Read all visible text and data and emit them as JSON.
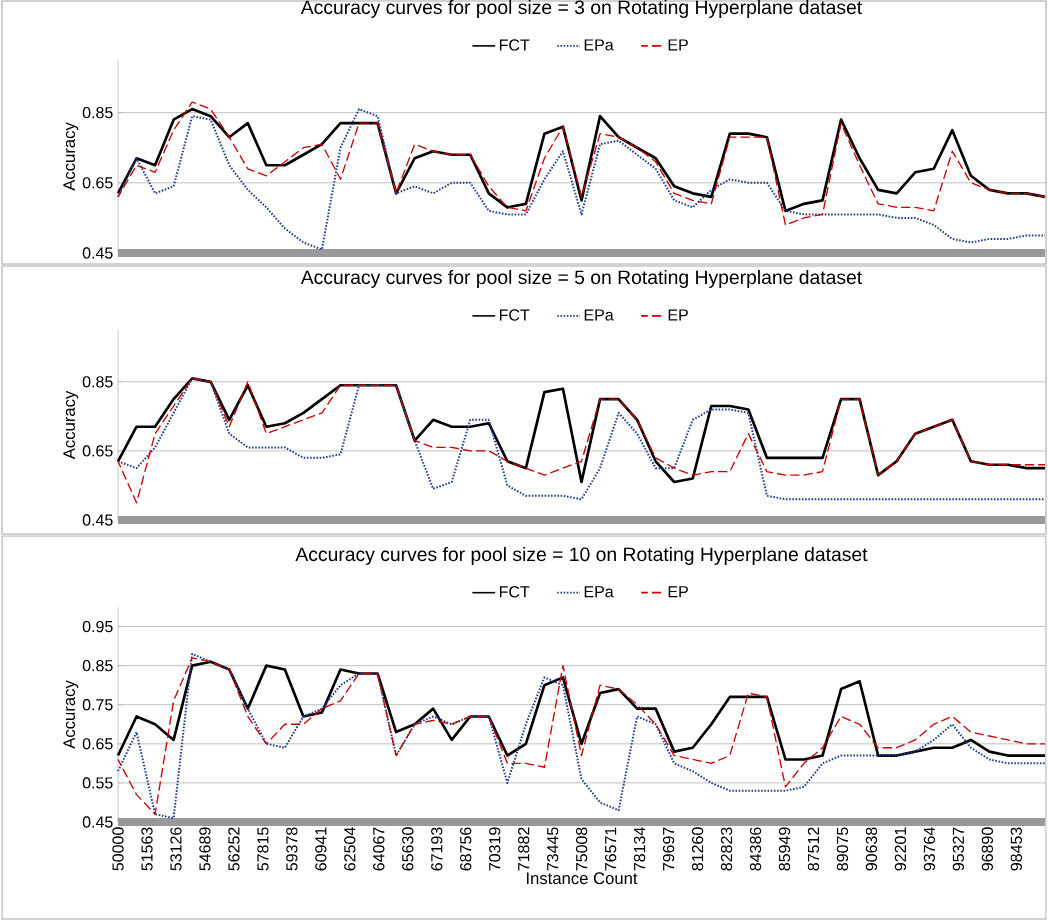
{
  "chart_data": [
    {
      "type": "line",
      "title": "Accuracy curves for pool size = 3 on Rotating Hyperplane dataset",
      "ylabel": "Accuracy",
      "legend": "top",
      "grid": "y",
      "tick_labels": "y",
      "x": [
        50000,
        51000,
        52000,
        53000,
        54000,
        55000,
        56000,
        57000,
        58000,
        59000,
        60000,
        61000,
        62000,
        63000,
        64000,
        65000,
        66000,
        67000,
        68000,
        69000,
        70000,
        71000,
        72000,
        73000,
        74000,
        75000,
        76000,
        77000,
        78000,
        79000,
        80000,
        81000,
        82000,
        83000,
        84000,
        85000,
        86000,
        87000,
        88000,
        89000,
        90000,
        91000,
        92000,
        93000,
        94000,
        95000,
        96000,
        97000,
        98000,
        99000,
        100000
      ],
      "xlim": [
        50000,
        100000
      ],
      "ylim": [
        0.45,
        1.0
      ],
      "yticks": [
        0.45,
        0.65,
        0.85
      ],
      "series": [
        {
          "name": "FCT",
          "color": "#000000",
          "line_style": "solid",
          "values": [
            0.62,
            0.72,
            0.7,
            0.83,
            0.86,
            0.84,
            0.78,
            0.82,
            0.7,
            0.7,
            0.73,
            0.76,
            0.82,
            0.82,
            0.82,
            0.62,
            0.72,
            0.74,
            0.73,
            0.73,
            0.62,
            0.58,
            0.59,
            0.79,
            0.81,
            0.6,
            0.84,
            0.78,
            0.75,
            0.72,
            0.64,
            0.62,
            0.61,
            0.79,
            0.79,
            0.78,
            0.57,
            0.59,
            0.6,
            0.83,
            0.72,
            0.63,
            0.62,
            0.68,
            0.69,
            0.8,
            0.67,
            0.63,
            0.62,
            0.62,
            0.61
          ]
        },
        {
          "name": "EPa",
          "color": "#1f3f8f",
          "line_style": "dotted",
          "values": [
            0.61,
            0.72,
            0.62,
            0.64,
            0.84,
            0.83,
            0.7,
            0.63,
            0.58,
            0.52,
            0.48,
            0.46,
            0.75,
            0.86,
            0.84,
            0.62,
            0.64,
            0.62,
            0.65,
            0.65,
            0.57,
            0.56,
            0.56,
            0.66,
            0.74,
            0.56,
            0.76,
            0.77,
            0.73,
            0.69,
            0.6,
            0.58,
            0.63,
            0.66,
            0.65,
            0.65,
            0.57,
            0.56,
            0.56,
            0.56,
            0.56,
            0.56,
            0.55,
            0.55,
            0.53,
            0.49,
            0.48,
            0.49,
            0.49,
            0.5,
            0.5
          ]
        },
        {
          "name": "EP",
          "color": "#cc0000",
          "line_style": "dashed",
          "values": [
            0.61,
            0.7,
            0.68,
            0.8,
            0.88,
            0.86,
            0.78,
            0.69,
            0.67,
            0.71,
            0.75,
            0.76,
            0.66,
            0.82,
            0.82,
            0.62,
            0.76,
            0.74,
            0.73,
            0.73,
            0.64,
            0.58,
            0.57,
            0.72,
            0.81,
            0.61,
            0.79,
            0.78,
            0.75,
            0.71,
            0.62,
            0.6,
            0.59,
            0.78,
            0.78,
            0.78,
            0.53,
            0.55,
            0.56,
            0.82,
            0.7,
            0.59,
            0.58,
            0.58,
            0.57,
            0.74,
            0.65,
            0.63,
            0.62,
            0.62,
            0.61
          ]
        }
      ]
    },
    {
      "type": "line",
      "title": "Accuracy curves for pool size = 5 on Rotating Hyperplane dataset",
      "ylabel": "Accuracy",
      "legend": "top",
      "grid": "y",
      "tick_labels": "y",
      "x": [
        50000,
        51000,
        52000,
        53000,
        54000,
        55000,
        56000,
        57000,
        58000,
        59000,
        60000,
        61000,
        62000,
        63000,
        64000,
        65000,
        66000,
        67000,
        68000,
        69000,
        70000,
        71000,
        72000,
        73000,
        74000,
        75000,
        76000,
        77000,
        78000,
        79000,
        80000,
        81000,
        82000,
        83000,
        84000,
        85000,
        86000,
        87000,
        88000,
        89000,
        90000,
        91000,
        92000,
        93000,
        94000,
        95000,
        96000,
        97000,
        98000,
        99000,
        100000
      ],
      "xlim": [
        50000,
        100000
      ],
      "ylim": [
        0.45,
        1.0
      ],
      "yticks": [
        0.45,
        0.65,
        0.85
      ],
      "series": [
        {
          "name": "FCT",
          "color": "#000000",
          "line_style": "solid",
          "values": [
            0.62,
            0.72,
            0.72,
            0.8,
            0.86,
            0.85,
            0.74,
            0.84,
            0.72,
            0.73,
            0.76,
            0.8,
            0.84,
            0.84,
            0.84,
            0.84,
            0.68,
            0.74,
            0.72,
            0.72,
            0.73,
            0.62,
            0.6,
            0.82,
            0.83,
            0.56,
            0.8,
            0.8,
            0.74,
            0.62,
            0.56,
            0.57,
            0.78,
            0.78,
            0.77,
            0.63,
            0.63,
            0.63,
            0.63,
            0.8,
            0.8,
            0.58,
            0.62,
            0.7,
            0.72,
            0.74,
            0.62,
            0.61,
            0.61,
            0.6,
            0.6
          ]
        },
        {
          "name": "EPa",
          "color": "#1f3f8f",
          "line_style": "dotted",
          "values": [
            0.62,
            0.6,
            0.66,
            0.76,
            0.86,
            0.85,
            0.7,
            0.66,
            0.66,
            0.66,
            0.63,
            0.63,
            0.64,
            0.84,
            0.84,
            0.84,
            0.68,
            0.54,
            0.56,
            0.74,
            0.74,
            0.55,
            0.52,
            0.52,
            0.52,
            0.51,
            0.6,
            0.76,
            0.7,
            0.6,
            0.6,
            0.74,
            0.77,
            0.77,
            0.76,
            0.52,
            0.51,
            0.51,
            0.51,
            0.51,
            0.51,
            0.51,
            0.51,
            0.51,
            0.51,
            0.51,
            0.51,
            0.51,
            0.51,
            0.51,
            0.51
          ]
        },
        {
          "name": "EP",
          "color": "#cc0000",
          "line_style": "dashed",
          "values": [
            0.62,
            0.5,
            0.7,
            0.78,
            0.86,
            0.85,
            0.72,
            0.85,
            0.7,
            0.72,
            0.74,
            0.76,
            0.84,
            0.84,
            0.84,
            0.84,
            0.68,
            0.66,
            0.66,
            0.65,
            0.65,
            0.62,
            0.6,
            0.58,
            0.6,
            0.62,
            0.8,
            0.8,
            0.74,
            0.63,
            0.6,
            0.58,
            0.59,
            0.59,
            0.7,
            0.59,
            0.58,
            0.58,
            0.59,
            0.8,
            0.8,
            0.58,
            0.62,
            0.7,
            0.72,
            0.74,
            0.62,
            0.61,
            0.61,
            0.61,
            0.61
          ]
        }
      ]
    },
    {
      "type": "line",
      "title": "Accuracy curves for pool size = 10 on Rotating Hyperplane dataset",
      "xlabel": "Instance Count",
      "ylabel": "Accuracy",
      "legend": "top",
      "grid": "y",
      "x": [
        50000,
        51000,
        52000,
        53000,
        54000,
        55000,
        56000,
        57000,
        58000,
        59000,
        60000,
        61000,
        62000,
        63000,
        64000,
        65000,
        66000,
        67000,
        68000,
        69000,
        70000,
        71000,
        72000,
        73000,
        74000,
        75000,
        76000,
        77000,
        78000,
        79000,
        80000,
        81000,
        82000,
        83000,
        84000,
        85000,
        86000,
        87000,
        88000,
        89000,
        90000,
        91000,
        92000,
        93000,
        94000,
        95000,
        96000,
        97000,
        98000,
        99000,
        100000
      ],
      "xlim": [
        50000,
        100000
      ],
      "ylim": [
        0.45,
        1.0
      ],
      "yticks": [
        0.45,
        0.55,
        0.65,
        0.75,
        0.85,
        0.95
      ],
      "xticks": [
        50000,
        51563,
        53126,
        54689,
        56252,
        57815,
        59378,
        60941,
        62504,
        64067,
        65630,
        67193,
        68756,
        70319,
        71882,
        73445,
        75008,
        76571,
        78134,
        79697,
        81260,
        82823,
        84386,
        85949,
        87512,
        89075,
        90638,
        92201,
        93764,
        95327,
        96890,
        98453
      ],
      "series": [
        {
          "name": "FCT",
          "color": "#000000",
          "line_style": "solid",
          "values": [
            0.62,
            0.72,
            0.7,
            0.66,
            0.85,
            0.86,
            0.84,
            0.74,
            0.85,
            0.84,
            0.72,
            0.73,
            0.84,
            0.83,
            0.83,
            0.68,
            0.7,
            0.74,
            0.66,
            0.72,
            0.72,
            0.62,
            0.65,
            0.8,
            0.82,
            0.65,
            0.78,
            0.79,
            0.74,
            0.74,
            0.63,
            0.64,
            0.7,
            0.77,
            0.77,
            0.77,
            0.61,
            0.61,
            0.62,
            0.79,
            0.81,
            0.62,
            0.62,
            0.63,
            0.64,
            0.64,
            0.66,
            0.63,
            0.62,
            0.62,
            0.62
          ]
        },
        {
          "name": "EPa",
          "color": "#1f3f8f",
          "line_style": "dotted",
          "values": [
            0.58,
            0.68,
            0.47,
            0.46,
            0.88,
            0.86,
            0.84,
            0.74,
            0.65,
            0.64,
            0.72,
            0.74,
            0.8,
            0.83,
            0.83,
            0.62,
            0.7,
            0.72,
            0.7,
            0.72,
            0.72,
            0.55,
            0.7,
            0.82,
            0.8,
            0.56,
            0.5,
            0.48,
            0.72,
            0.7,
            0.6,
            0.58,
            0.55,
            0.53,
            0.53,
            0.53,
            0.53,
            0.54,
            0.6,
            0.62,
            0.62,
            0.62,
            0.62,
            0.63,
            0.66,
            0.7,
            0.64,
            0.61,
            0.6,
            0.6,
            0.6
          ]
        },
        {
          "name": "EP",
          "color": "#cc0000",
          "line_style": "dashed",
          "values": [
            0.61,
            0.52,
            0.47,
            0.76,
            0.87,
            0.86,
            0.84,
            0.72,
            0.65,
            0.7,
            0.7,
            0.74,
            0.76,
            0.83,
            0.83,
            0.62,
            0.7,
            0.71,
            0.7,
            0.72,
            0.72,
            0.6,
            0.6,
            0.59,
            0.85,
            0.62,
            0.8,
            0.79,
            0.75,
            0.7,
            0.62,
            0.61,
            0.6,
            0.62,
            0.78,
            0.77,
            0.54,
            0.6,
            0.64,
            0.72,
            0.7,
            0.64,
            0.64,
            0.66,
            0.7,
            0.72,
            0.68,
            0.67,
            0.66,
            0.65,
            0.65
          ]
        }
      ]
    }
  ]
}
